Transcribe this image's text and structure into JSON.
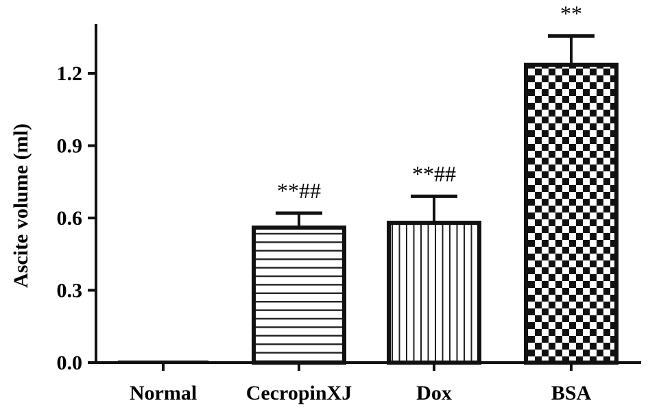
{
  "chart_data": {
    "type": "bar",
    "title": "",
    "xlabel": "",
    "ylabel": "Ascite volume (ml)",
    "ylim": [
      0,
      1.2
    ],
    "yticks": [
      "0.0",
      "0.3",
      "0.6",
      "0.9",
      "1.2"
    ],
    "categories": [
      "Normal",
      "CecropinXJ",
      "Dox",
      "BSA"
    ],
    "values": [
      0.0,
      0.56,
      0.58,
      1.235
    ],
    "errors": [
      0.0,
      0.06,
      0.11,
      0.12
    ],
    "annotations": [
      "",
      "**##",
      "**##",
      "**"
    ],
    "patterns": [
      "none",
      "horizontal-lines",
      "vertical-lines",
      "checkerboard"
    ],
    "grid": false,
    "colors": {
      "bar": "#111111",
      "fill": "#ffffff"
    }
  }
}
